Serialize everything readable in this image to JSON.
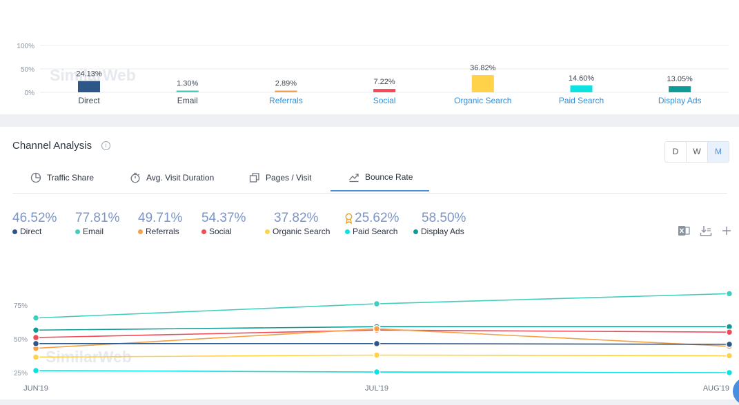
{
  "watermark": "SimilarWeb",
  "top_chart": {
    "y_ticks": [
      "100%",
      "50%",
      "0%"
    ],
    "ylim": [
      0,
      100
    ],
    "bars": [
      {
        "label": "Direct",
        "value": 24.13,
        "value_label": "24.13%",
        "color": "#2d5789",
        "link": false
      },
      {
        "label": "Email",
        "value": 1.3,
        "value_label": "1.30%",
        "color": "#3ecfc0",
        "link": false
      },
      {
        "label": "Referrals",
        "value": 2.89,
        "value_label": "2.89%",
        "color": "#f7a044",
        "link": true
      },
      {
        "label": "Social",
        "value": 7.22,
        "value_label": "7.22%",
        "color": "#f04b57",
        "link": true
      },
      {
        "label": "Organic Search",
        "value": 36.82,
        "value_label": "36.82%",
        "color": "#ffd249",
        "link": true
      },
      {
        "label": "Paid Search",
        "value": 14.6,
        "value_label": "14.60%",
        "color": "#0de2e2",
        "link": true
      },
      {
        "label": "Display Ads",
        "value": 13.05,
        "value_label": "13.05%",
        "color": "#0e9b98",
        "link": true
      }
    ]
  },
  "channel": {
    "title": "Channel Analysis",
    "info_icon": "info-icon",
    "granularity": [
      "D",
      "W",
      "M"
    ],
    "granularity_active": "M",
    "tabs": [
      {
        "label": "Traffic Share",
        "icon": "pie-icon"
      },
      {
        "label": "Avg. Visit Duration",
        "icon": "stopwatch-icon"
      },
      {
        "label": "Pages / Visit",
        "icon": "pages-icon"
      },
      {
        "label": "Bounce Rate",
        "icon": "bounce-icon",
        "active": true
      }
    ],
    "metrics": [
      {
        "value": "46.52%",
        "label": "Direct",
        "color": "#2d5789"
      },
      {
        "value": "77.81%",
        "label": "Email",
        "color": "#3ecfc0"
      },
      {
        "value": "49.71%",
        "label": "Referrals",
        "color": "#f7a044"
      },
      {
        "value": "54.37%",
        "label": "Social",
        "color": "#f04b57"
      },
      {
        "value": "37.82%",
        "label": "Organic Search",
        "color": "#ffd249"
      },
      {
        "value": "25.62%",
        "label": "Paid Search",
        "color": "#0de2e2",
        "badge": "award-icon"
      },
      {
        "value": "58.50%",
        "label": "Display Ads",
        "color": "#0e9b98"
      }
    ],
    "tools": [
      "excel-export-icon",
      "download-icon",
      "add-icon"
    ]
  },
  "chart_data": {
    "type": "line",
    "x": [
      "JUN'19",
      "JUL'19",
      "AUG'19"
    ],
    "y_ticks": [
      "75%",
      "50%",
      "25%"
    ],
    "ylim": [
      0,
      100
    ],
    "grid": true,
    "series": [
      {
        "name": "Email",
        "color": "#3ecfc0",
        "values": [
          65.5,
          76,
          83.5
        ]
      },
      {
        "name": "Display Ads",
        "color": "#0e9b98",
        "values": [
          56.5,
          59,
          59
        ]
      },
      {
        "name": "Social",
        "color": "#f04b57",
        "values": [
          51,
          56.5,
          55
        ]
      },
      {
        "name": "Referrals",
        "color": "#f7a044",
        "values": [
          43,
          57.5,
          44.5
        ]
      },
      {
        "name": "Direct",
        "color": "#2d5789",
        "values": [
          46.5,
          46.5,
          46
        ]
      },
      {
        "name": "Organic Search",
        "color": "#ffd249",
        "values": [
          36.5,
          38,
          37.5
        ]
      },
      {
        "name": "Paid Search",
        "color": "#0de2e2",
        "values": [
          26.5,
          25.5,
          25
        ]
      }
    ]
  }
}
